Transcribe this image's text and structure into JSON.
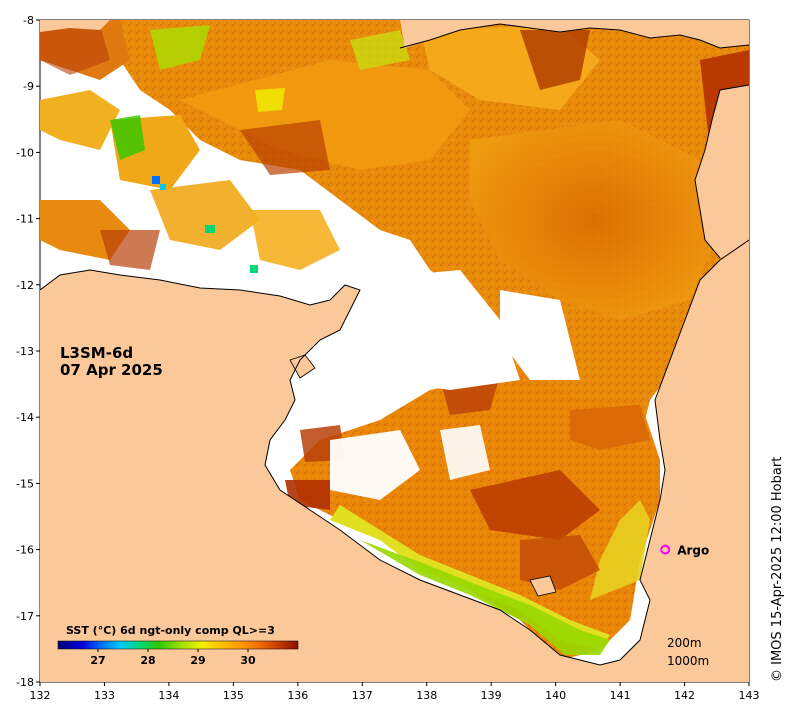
{
  "map": {
    "lon_range": [
      132,
      143
    ],
    "lat_range": [
      -8,
      -18
    ],
    "lon_ticks": [
      "132",
      "133",
      "134",
      "135",
      "136",
      "137",
      "138",
      "139",
      "140",
      "141",
      "142",
      "143"
    ],
    "lat_ticks": [
      "-8",
      "-9",
      "-10",
      "-11",
      "-12",
      "-13",
      "-14",
      "-15",
      "-16",
      "-17",
      "-18"
    ],
    "land_color": "#fbc89a",
    "nodata_color": "#ffffff"
  },
  "product": {
    "line1": "L3SM-6d",
    "line2": "07 Apr 2025"
  },
  "legend": {
    "title": "SST (°C) 6d ngt-only comp QL>=3",
    "ticks": [
      "27",
      "28",
      "29",
      "30"
    ],
    "tick_values": [
      27,
      28,
      29,
      30
    ],
    "range": [
      26.2,
      31.0
    ],
    "colors": [
      "#00007a",
      "#0000d8",
      "#0070ff",
      "#00c8ff",
      "#00d878",
      "#30c800",
      "#a8e000",
      "#f0f000",
      "#ffc000",
      "#ff9000",
      "#e86000",
      "#b83000",
      "#8a1000"
    ]
  },
  "argo": {
    "label": "Argo",
    "marker_color": "#ff00ff",
    "lon": 141.7,
    "lat": -16.0
  },
  "contours": {
    "line1": "200m",
    "line2": "1000m"
  },
  "credit": "© IMOS 15-Apr-2025 12:00 Hobart"
}
